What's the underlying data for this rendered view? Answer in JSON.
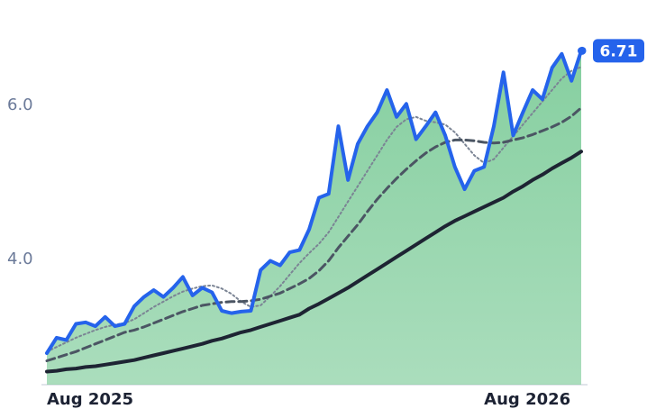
{
  "chart_data": {
    "type": "line",
    "categories": [
      "Aug 2025",
      null,
      null,
      null,
      null,
      null,
      null,
      null,
      null,
      null,
      null,
      null,
      null,
      null,
      null,
      null,
      null,
      null,
      null,
      null,
      null,
      null,
      null,
      null,
      null,
      null,
      null,
      null,
      null,
      null,
      null,
      null,
      null,
      null,
      null,
      null,
      null,
      null,
      null,
      null,
      null,
      null,
      null,
      null,
      null,
      "Aug 2026",
      null,
      null,
      null,
      null,
      null,
      null,
      null,
      null,
      null,
      null
    ],
    "ylim": [
      2.37,
      7.37
    ],
    "yticks": [
      {
        "value": 4,
        "label": "4.0"
      },
      {
        "value": 6,
        "label": "6.0"
      }
    ],
    "area_color": "#86cfa0",
    "series": [
      {
        "color": "#2563eb",
        "style": "solid",
        "width": 4,
        "area": true,
        "values": [
          2.78,
          2.98,
          2.95,
          3.16,
          3.18,
          3.13,
          3.25,
          3.13,
          3.16,
          3.39,
          3.51,
          3.6,
          3.51,
          3.63,
          3.77,
          3.53,
          3.63,
          3.57,
          3.33,
          3.3,
          3.32,
          3.33,
          3.86,
          3.98,
          3.92,
          4.09,
          4.12,
          4.39,
          4.8,
          4.85,
          5.73,
          5.03,
          5.5,
          5.73,
          5.91,
          6.2,
          5.85,
          6.02,
          5.56,
          5.73,
          5.91,
          5.61,
          5.2,
          4.91,
          5.15,
          5.2,
          5.73,
          6.43,
          5.61,
          5.91,
          6.2,
          6.08,
          6.49,
          6.67,
          6.32,
          6.71
        ]
      },
      {
        "color": "#7b8494",
        "style": "dotted",
        "width": 2,
        "values": [
          2.8,
          2.86,
          2.92,
          2.98,
          3.03,
          3.08,
          3.12,
          3.15,
          3.17,
          3.22,
          3.3,
          3.38,
          3.45,
          3.52,
          3.58,
          3.62,
          3.65,
          3.66,
          3.62,
          3.55,
          3.45,
          3.38,
          3.4,
          3.52,
          3.65,
          3.8,
          3.95,
          4.08,
          4.2,
          4.35,
          4.55,
          4.75,
          4.95,
          5.15,
          5.35,
          5.55,
          5.72,
          5.82,
          5.85,
          5.8,
          5.78,
          5.75,
          5.65,
          5.5,
          5.35,
          5.25,
          5.3,
          5.45,
          5.6,
          5.75,
          5.9,
          6.05,
          6.2,
          6.35,
          6.45,
          6.5
        ]
      },
      {
        "color": "#4b5563",
        "style": "dashed",
        "width": 3,
        "values": [
          2.68,
          2.72,
          2.76,
          2.8,
          2.85,
          2.9,
          2.95,
          3.0,
          3.05,
          3.08,
          3.12,
          3.17,
          3.22,
          3.27,
          3.32,
          3.36,
          3.4,
          3.42,
          3.44,
          3.45,
          3.45,
          3.46,
          3.48,
          3.52,
          3.56,
          3.62,
          3.68,
          3.75,
          3.85,
          3.98,
          4.15,
          4.3,
          4.45,
          4.62,
          4.78,
          4.92,
          5.05,
          5.17,
          5.28,
          5.38,
          5.46,
          5.52,
          5.55,
          5.55,
          5.54,
          5.52,
          5.51,
          5.52,
          5.55,
          5.58,
          5.62,
          5.67,
          5.72,
          5.78,
          5.86,
          5.97
        ]
      },
      {
        "color": "#1e2433",
        "style": "solid",
        "width": 4,
        "values": [
          2.54,
          2.55,
          2.57,
          2.58,
          2.6,
          2.61,
          2.63,
          2.65,
          2.67,
          2.69,
          2.72,
          2.75,
          2.78,
          2.81,
          2.84,
          2.87,
          2.9,
          2.94,
          2.97,
          3.01,
          3.05,
          3.08,
          3.12,
          3.16,
          3.2,
          3.24,
          3.28,
          3.36,
          3.42,
          3.49,
          3.56,
          3.63,
          3.71,
          3.79,
          3.87,
          3.95,
          4.03,
          4.11,
          4.19,
          4.27,
          4.35,
          4.43,
          4.5,
          4.56,
          4.62,
          4.68,
          4.74,
          4.8,
          4.88,
          4.95,
          5.03,
          5.1,
          5.18,
          5.25,
          5.32,
          5.4
        ]
      }
    ]
  }
}
